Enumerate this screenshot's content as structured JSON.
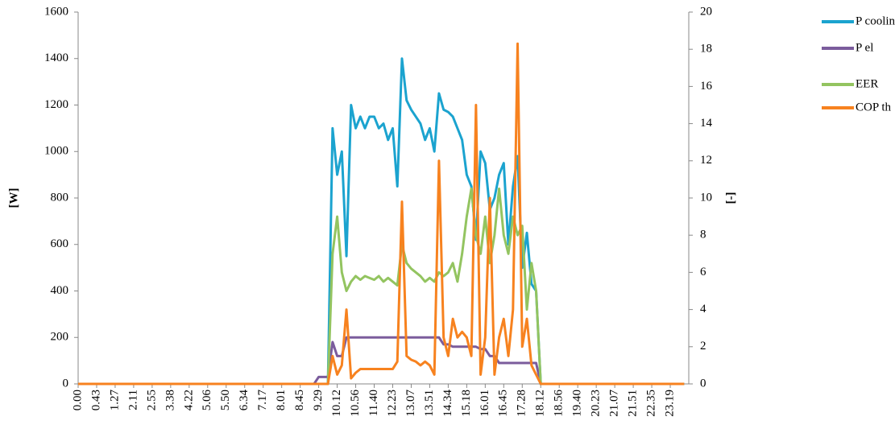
{
  "chart_data": {
    "type": "line",
    "ylabel": "[W]",
    "y2label": "[-]",
    "ylim": [
      0,
      1600
    ],
    "yticks": [
      0,
      200,
      400,
      600,
      800,
      1000,
      1200,
      1400,
      1600
    ],
    "y2lim": [
      0,
      20
    ],
    "y2ticks": [
      0,
      2,
      4,
      6,
      8,
      10,
      12,
      14,
      16,
      18,
      20
    ],
    "legend": "right",
    "categories": [
      "0.00",
      null,
      null,
      null,
      "0.43",
      null,
      null,
      null,
      "1.27",
      null,
      null,
      null,
      "2.11",
      null,
      null,
      null,
      "2.55",
      null,
      null,
      null,
      "3.38",
      null,
      null,
      null,
      "4.22",
      null,
      null,
      null,
      "5.06",
      null,
      null,
      null,
      "5.50",
      null,
      null,
      null,
      "6.34",
      null,
      null,
      null,
      "7.17",
      null,
      null,
      null,
      "8.01",
      null,
      null,
      null,
      "8.45",
      null,
      null,
      null,
      "9.29",
      null,
      null,
      null,
      "10.12",
      null,
      null,
      null,
      "10.56",
      null,
      null,
      null,
      "11.40",
      null,
      null,
      null,
      "12.23",
      null,
      null,
      null,
      "13.07",
      null,
      null,
      null,
      "13.51",
      null,
      null,
      null,
      "14.34",
      null,
      null,
      null,
      "15.18",
      null,
      null,
      null,
      "16.01",
      null,
      null,
      null,
      "16.45",
      null,
      null,
      null,
      "17.28",
      null,
      null,
      null,
      "18.12",
      null,
      null,
      null,
      "18.56",
      null,
      null,
      null,
      "19.40",
      null,
      null,
      null,
      "20.23",
      null,
      null,
      null,
      "21.07",
      null,
      null,
      null,
      "21.51",
      null,
      null,
      null,
      "22.35",
      null,
      null,
      null,
      "23.19",
      null,
      null,
      null
    ],
    "series": [
      {
        "name": "P cooling total",
        "color": "#1ba3cf",
        "values": [
          0,
          0,
          0,
          0,
          0,
          0,
          0,
          0,
          0,
          0,
          0,
          0,
          0,
          0,
          0,
          0,
          0,
          0,
          0,
          0,
          0,
          0,
          0,
          0,
          0,
          0,
          0,
          0,
          0,
          0,
          0,
          0,
          0,
          0,
          0,
          0,
          0,
          0,
          0,
          0,
          0,
          0,
          0,
          0,
          0,
          0,
          0,
          0,
          0,
          0,
          0,
          0,
          0,
          0,
          0,
          1100,
          900,
          1000,
          550,
          1200,
          1100,
          1150,
          1100,
          1150,
          1150,
          1100,
          1120,
          1050,
          1100,
          850,
          1400,
          1220,
          1180,
          1150,
          1120,
          1050,
          1100,
          1000,
          1250,
          1180,
          1170,
          1150,
          1100,
          1050,
          900,
          850,
          620,
          1000,
          950,
          750,
          800,
          900,
          950,
          600,
          850,
          980,
          500,
          650,
          430,
          400,
          0,
          0,
          0,
          0,
          0,
          0,
          0,
          0,
          0,
          0,
          0,
          0,
          0,
          0,
          0,
          0,
          0,
          0,
          0,
          0,
          0,
          0,
          0,
          0,
          0,
          0,
          0,
          0,
          0,
          0,
          0,
          0
        ]
      },
      {
        "name": "P el",
        "color": "#7b5c9c",
        "values": [
          0,
          0,
          0,
          0,
          0,
          0,
          0,
          0,
          0,
          0,
          0,
          0,
          0,
          0,
          0,
          0,
          0,
          0,
          0,
          0,
          0,
          0,
          0,
          0,
          0,
          0,
          0,
          0,
          0,
          0,
          0,
          0,
          0,
          0,
          0,
          0,
          0,
          0,
          0,
          0,
          0,
          0,
          0,
          0,
          0,
          0,
          0,
          0,
          0,
          0,
          0,
          0,
          30,
          30,
          30,
          180,
          120,
          120,
          200,
          200,
          200,
          200,
          200,
          200,
          200,
          200,
          200,
          200,
          200,
          200,
          200,
          200,
          200,
          200,
          200,
          200,
          200,
          200,
          200,
          170,
          170,
          160,
          160,
          160,
          160,
          160,
          160,
          150,
          150,
          120,
          120,
          90,
          90,
          90,
          90,
          90,
          90,
          90,
          90,
          90,
          0,
          0,
          0,
          0,
          0,
          0,
          0,
          0,
          0,
          0,
          0,
          0,
          0,
          0,
          0,
          0,
          0,
          0,
          0,
          0,
          0,
          0,
          0,
          0,
          0,
          0,
          0,
          0,
          0,
          0,
          0,
          0
        ]
      },
      {
        "name": "EER",
        "color": "#93c460",
        "axis": "y2",
        "values": [
          0,
          0,
          0,
          0,
          0,
          0,
          0,
          0,
          0,
          0,
          0,
          0,
          0,
          0,
          0,
          0,
          0,
          0,
          0,
          0,
          0,
          0,
          0,
          0,
          0,
          0,
          0,
          0,
          0,
          0,
          0,
          0,
          0,
          0,
          0,
          0,
          0,
          0,
          0,
          0,
          0,
          0,
          0,
          0,
          0,
          0,
          0,
          0,
          0,
          0,
          0,
          0,
          0,
          0,
          0,
          7,
          9,
          6,
          5,
          5.5,
          5.8,
          5.6,
          5.8,
          5.7,
          5.6,
          5.8,
          5.5,
          5.7,
          5.5,
          5.3,
          7.5,
          6.5,
          6.2,
          6,
          5.8,
          5.5,
          5.7,
          5.5,
          6,
          5.8,
          6,
          6.5,
          5.5,
          7,
          9,
          10.5,
          8,
          7,
          9,
          6.5,
          8,
          10.5,
          8,
          7,
          9,
          8,
          8.5,
          4,
          6.5,
          5,
          0,
          0,
          0,
          0,
          0,
          0,
          0,
          0,
          0,
          0,
          0,
          0,
          0,
          0,
          0,
          0,
          0,
          0,
          0,
          0,
          0,
          0,
          0,
          0,
          0,
          0,
          0,
          0,
          0,
          0,
          0,
          0
        ]
      },
      {
        "name": "COP th",
        "color": "#f7821f",
        "axis": "y2",
        "values": [
          0,
          0,
          0,
          0,
          0,
          0,
          0,
          0,
          0,
          0,
          0,
          0,
          0,
          0,
          0,
          0,
          0,
          0,
          0,
          0,
          0,
          0,
          0,
          0,
          0,
          0,
          0,
          0,
          0,
          0,
          0,
          0,
          0,
          0,
          0,
          0,
          0,
          0,
          0,
          0,
          0,
          0,
          0,
          0,
          0,
          0,
          0,
          0,
          0,
          0,
          0,
          0,
          0,
          0,
          0,
          1.5,
          0.5,
          1,
          4,
          0.3,
          0.6,
          0.8,
          0.8,
          0.8,
          0.8,
          0.8,
          0.8,
          0.8,
          0.8,
          1.2,
          9.8,
          1.5,
          1.3,
          1.2,
          1.0,
          1.2,
          1.0,
          0.5,
          12,
          2.5,
          1.5,
          3.5,
          2.5,
          2.8,
          2.5,
          1.5,
          15,
          0.5,
          2.5,
          10,
          0.5,
          2.5,
          3.5,
          1.5,
          4,
          18.3,
          2,
          3.5,
          1,
          0.5,
          0,
          0,
          0,
          0,
          0,
          0,
          0,
          0,
          0,
          0,
          0,
          0,
          0,
          0,
          0,
          0,
          0,
          0,
          0,
          0,
          0,
          0,
          0,
          0,
          0,
          0,
          0,
          0,
          0,
          0,
          0,
          0
        ]
      }
    ]
  }
}
